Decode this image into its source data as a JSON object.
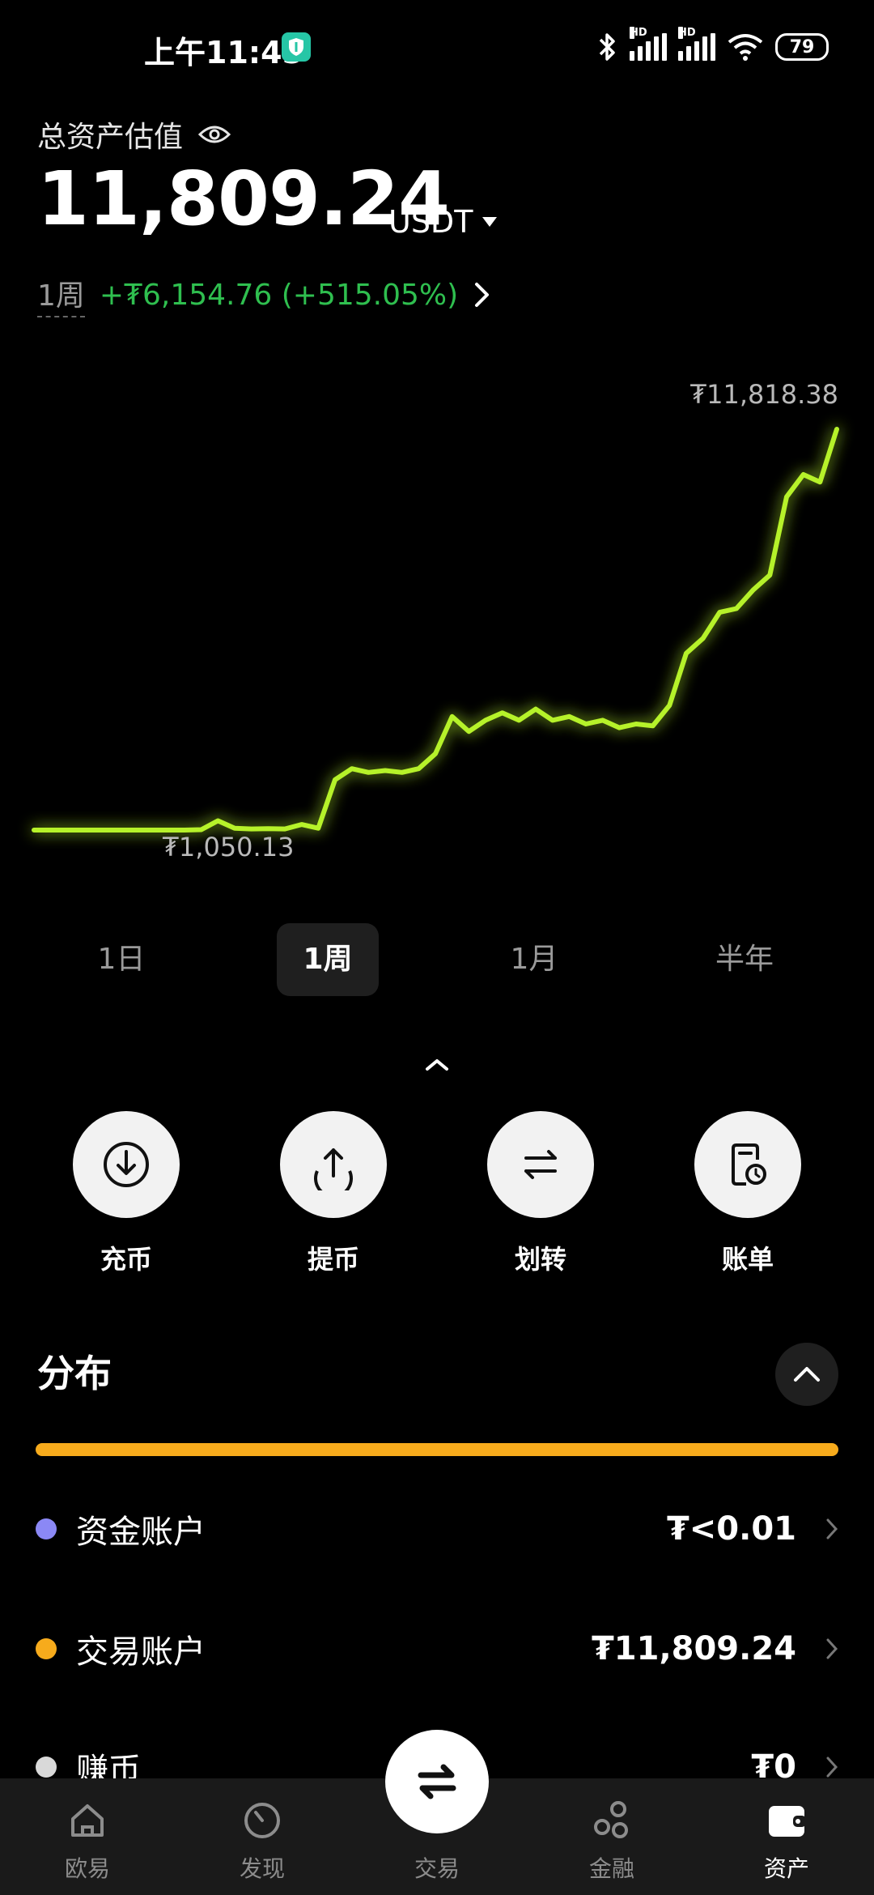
{
  "status_bar": {
    "time": "上午11:45",
    "battery": "79",
    "hd": "HD"
  },
  "header": {
    "label": "总资产估值",
    "total_value": "11,809.24",
    "currency": "USDT",
    "period": "1周",
    "change": "+₮6,154.76 (+515.05%)"
  },
  "chart_data": {
    "type": "line",
    "x_start_label": "",
    "high_label": "₮11,818.38",
    "low_label": "₮1,050.13",
    "series": [
      {
        "values": [
          1050,
          1050,
          1050,
          1050,
          1050,
          1050,
          1050,
          1050,
          1050,
          1050,
          1060,
          1300,
          1100,
          1080,
          1090,
          1080,
          1200,
          1100,
          2400,
          2700,
          2600,
          2650,
          2600,
          2700,
          3100,
          4100,
          3700,
          4000,
          4200,
          4000,
          4300,
          4000,
          4100,
          3900,
          4000,
          3800,
          3900,
          3850,
          4400,
          5800,
          6200,
          6900,
          7000,
          7500,
          7900,
          10000,
          10600,
          10400,
          11818
        ]
      }
    ],
    "ylim": [
      1050.13,
      11818.38
    ],
    "grid": false
  },
  "tabs": [
    "1日",
    "1周",
    "1月",
    "半年"
  ],
  "active_tab": "1周",
  "actions": [
    {
      "label": "充币",
      "icon": "deposit-icon"
    },
    {
      "label": "提币",
      "icon": "withdraw-icon"
    },
    {
      "label": "划转",
      "icon": "transfer-icon"
    },
    {
      "label": "账单",
      "icon": "bill-icon"
    }
  ],
  "distribution": {
    "title": "分布",
    "bar_color": "#f7ab1c",
    "accounts": [
      {
        "name": "资金账户",
        "value": "₮<0.01",
        "color": "#8b88f5"
      },
      {
        "name": "交易账户",
        "value": "₮11,809.24",
        "color": "#f7ab1c"
      },
      {
        "name": "赚币",
        "value": "₮0",
        "color": "#d9d9d9"
      }
    ]
  },
  "bottom_nav": {
    "items": [
      {
        "label": "欧易",
        "icon": "home-icon"
      },
      {
        "label": "发现",
        "icon": "discover-icon"
      },
      {
        "label": "交易",
        "icon": "trade-icon"
      },
      {
        "label": "金融",
        "icon": "finance-icon"
      },
      {
        "label": "资产",
        "icon": "wallet-icon"
      }
    ],
    "active": "资产"
  },
  "colors": {
    "chart_line": "#b6f22b",
    "positive": "#2fbf4f",
    "accent": "#f7ab1c"
  }
}
